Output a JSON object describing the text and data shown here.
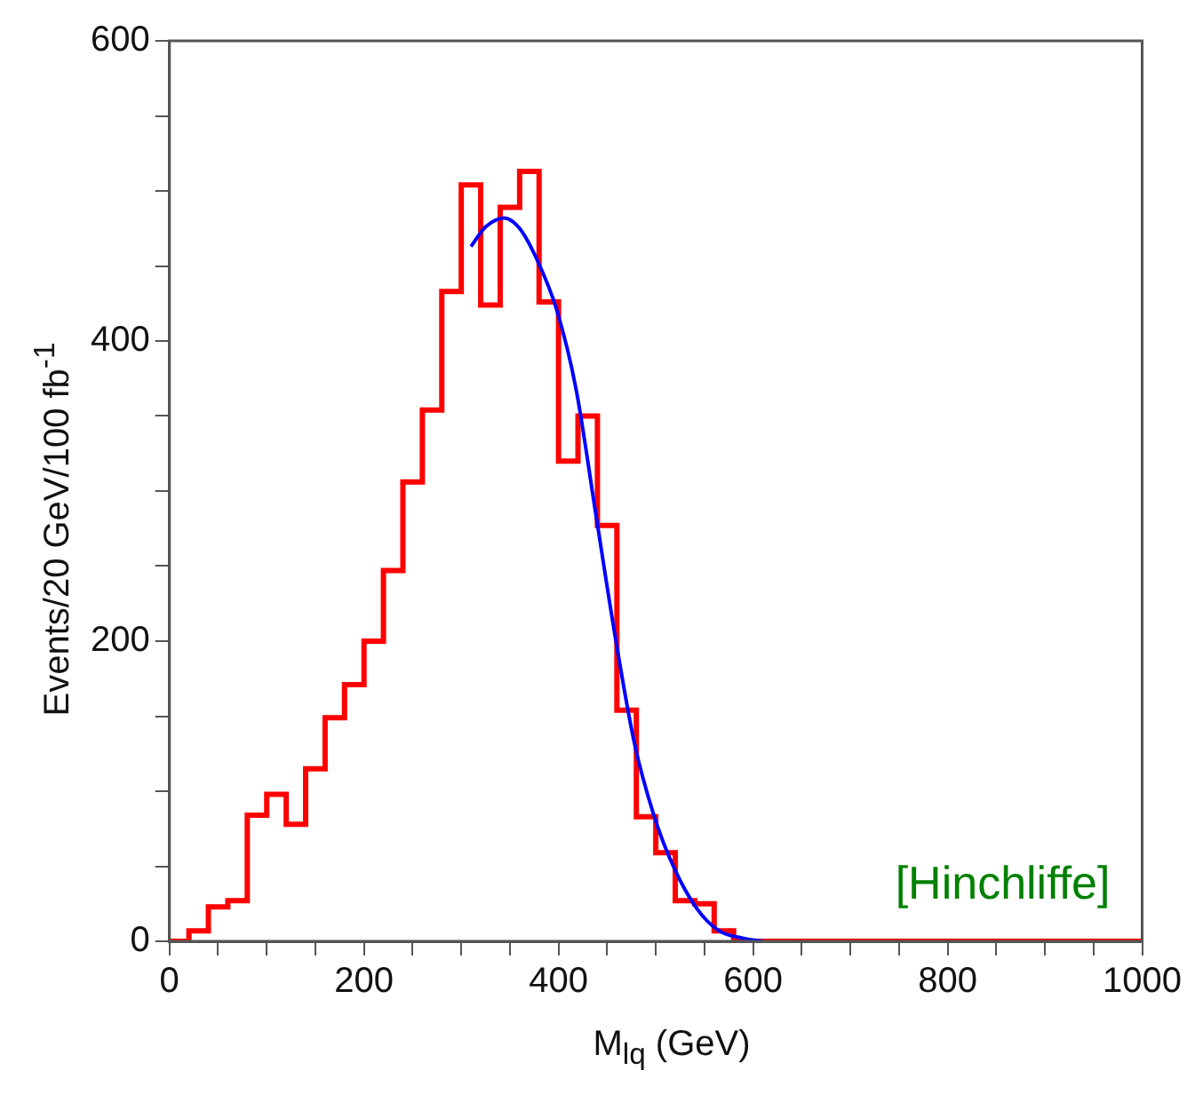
{
  "chart_data": {
    "type": "histogram",
    "xlabel": "M$_{lq}$ (GeV)",
    "ylabel": "Events/20 GeV/100 fb$^{-1}$",
    "bins": [
      0,
      20,
      40,
      60,
      80,
      100,
      120,
      140,
      160,
      180,
      200,
      220,
      240,
      260,
      280,
      300,
      320,
      340,
      360,
      380,
      400,
      420,
      440,
      460,
      480,
      500,
      520,
      540,
      560,
      580,
      600,
      620,
      640,
      660,
      680,
      700,
      720,
      740,
      760,
      780,
      800,
      820,
      840,
      860,
      880,
      900,
      920,
      940,
      960,
      980,
      1000
    ],
    "values": [
      0,
      7,
      23,
      27,
      84,
      98,
      78,
      115,
      149,
      171,
      200,
      247,
      306,
      354,
      433,
      504,
      424,
      489,
      513,
      426,
      320,
      350,
      277,
      154,
      83,
      59,
      27,
      25,
      7,
      0,
      0,
      0,
      0,
      0,
      0,
      0,
      0,
      0,
      0,
      0,
      0,
      0,
      0,
      0,
      0,
      0,
      0,
      0,
      0,
      0
    ],
    "color": "#ff0000",
    "series": [
      {
        "type": "line",
        "color": "#0000ff",
        "x": [
          310,
          325,
          344,
          360,
          378,
          398,
          418,
          438,
          458,
          478,
          498,
          518,
          542,
          565,
          590,
          610
        ],
        "values": [
          463,
          476,
          482,
          475,
          454,
          421,
          368,
          286,
          204,
          132,
          84,
          50,
          22,
          7,
          2,
          0
        ]
      }
    ],
    "xlim": [
      0,
      1000
    ],
    "ylim": [
      0,
      600
    ],
    "xticks": [
      0,
      {
        "value": 50,
        "label": null
      },
      {
        "value": 100,
        "label": null
      },
      {
        "value": 150,
        "label": null
      },
      200,
      {
        "value": 250,
        "label": null
      },
      {
        "value": 300,
        "label": null
      },
      {
        "value": 350,
        "label": null
      },
      400,
      {
        "value": 450,
        "label": null
      },
      {
        "value": 500,
        "label": null
      },
      {
        "value": 550,
        "label": null
      },
      600,
      {
        "value": 650,
        "label": null
      },
      {
        "value": 700,
        "label": null
      },
      {
        "value": 750,
        "label": null
      },
      800,
      {
        "value": 850,
        "label": null
      },
      {
        "value": 900,
        "label": null
      },
      {
        "value": 950,
        "label": null
      },
      1000
    ],
    "yticks": [
      0,
      {
        "value": 50,
        "label": null
      },
      {
        "value": 100,
        "label": null
      },
      {
        "value": 150,
        "label": null
      },
      200,
      {
        "value": 250,
        "label": null
      },
      {
        "value": 300,
        "label": null
      },
      {
        "value": 350,
        "label": null
      },
      400,
      {
        "value": 450,
        "label": null
      },
      {
        "value": 500,
        "label": null
      },
      {
        "value": 550,
        "label": null
      },
      600
    ],
    "annotations": [
      "[Hinchliffe]"
    ]
  }
}
